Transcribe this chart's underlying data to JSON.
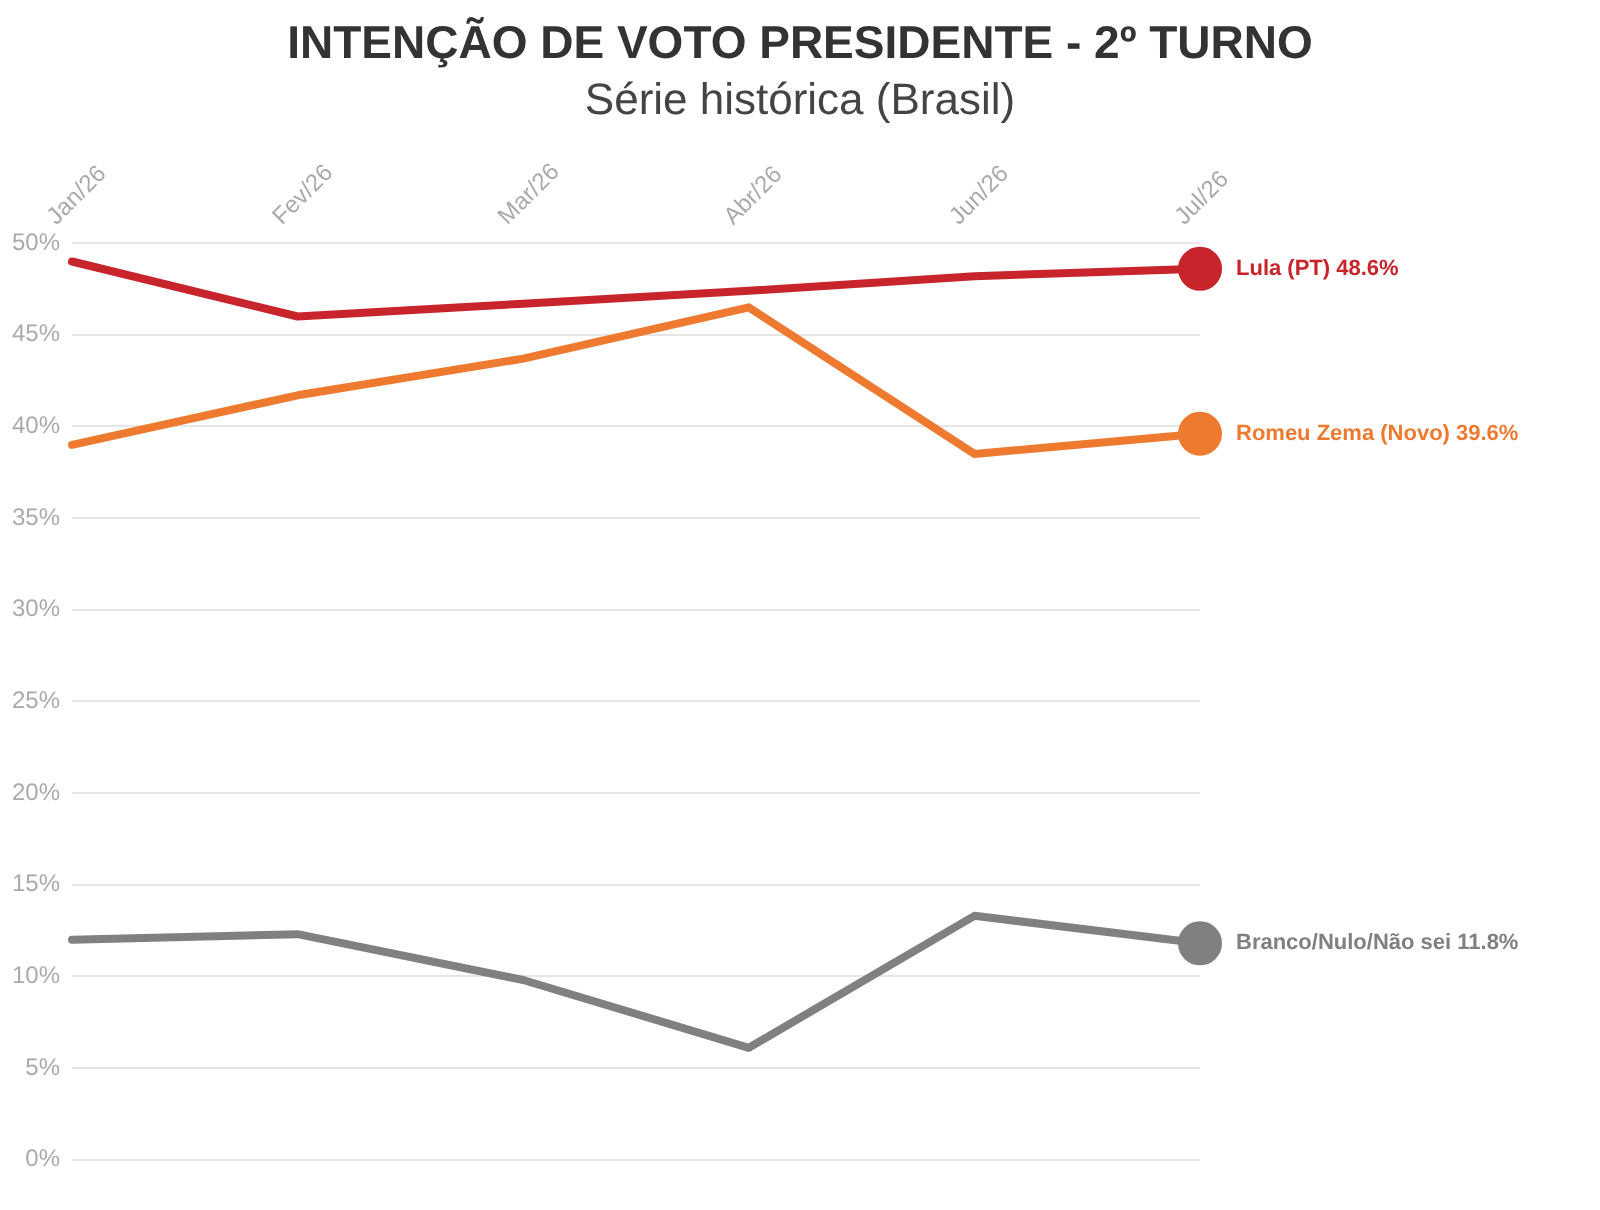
{
  "chart_data": {
    "type": "line",
    "title": "INTENÇÃO DE VOTO PRESIDENTE - 2º TURNO",
    "subtitle": "Série histórica (Brasil)",
    "categories": [
      "Jan/26",
      "Fev/26",
      "Mar/26",
      "Abr/26",
      "Jun/26",
      "Jul/26"
    ],
    "series": [
      {
        "name": "Lula (PT)",
        "color": "#c8242b",
        "values": [
          49.0,
          46.0,
          46.7,
          47.4,
          48.2,
          48.6
        ],
        "value_labels": [
          null,
          null,
          null,
          null,
          null,
          "48.6%"
        ]
      },
      {
        "name": "Romeu Zema (Novo)",
        "color": "#ee7a2f",
        "values": [
          39.0,
          41.7,
          43.7,
          46.5,
          38.5,
          39.6
        ],
        "value_labels": [
          null,
          null,
          null,
          null,
          null,
          "39.6%"
        ]
      },
      {
        "name": "Branco/Nulo/Não sei",
        "color": "#808080",
        "values": [
          12.0,
          12.3,
          9.8,
          6.1,
          13.3,
          11.8
        ],
        "value_labels": [
          null,
          null,
          null,
          null,
          null,
          "11.8%"
        ]
      }
    ],
    "ylim": [
      0,
      50
    ],
    "yticks": [
      {
        "value": 0,
        "label": "0%"
      },
      {
        "value": 5,
        "label": "5%"
      },
      {
        "value": 10,
        "label": "10%"
      },
      {
        "value": 15,
        "label": "15%"
      },
      {
        "value": 20,
        "label": "20%"
      },
      {
        "value": 25,
        "label": "25%"
      },
      {
        "value": 30,
        "label": "30%"
      },
      {
        "value": 35,
        "label": "35%"
      },
      {
        "value": 40,
        "label": "40%"
      },
      {
        "value": 45,
        "label": "45%"
      },
      {
        "value": 50,
        "label": "50%"
      }
    ],
    "grid": "y",
    "legend": false,
    "line_style": "solid"
  }
}
